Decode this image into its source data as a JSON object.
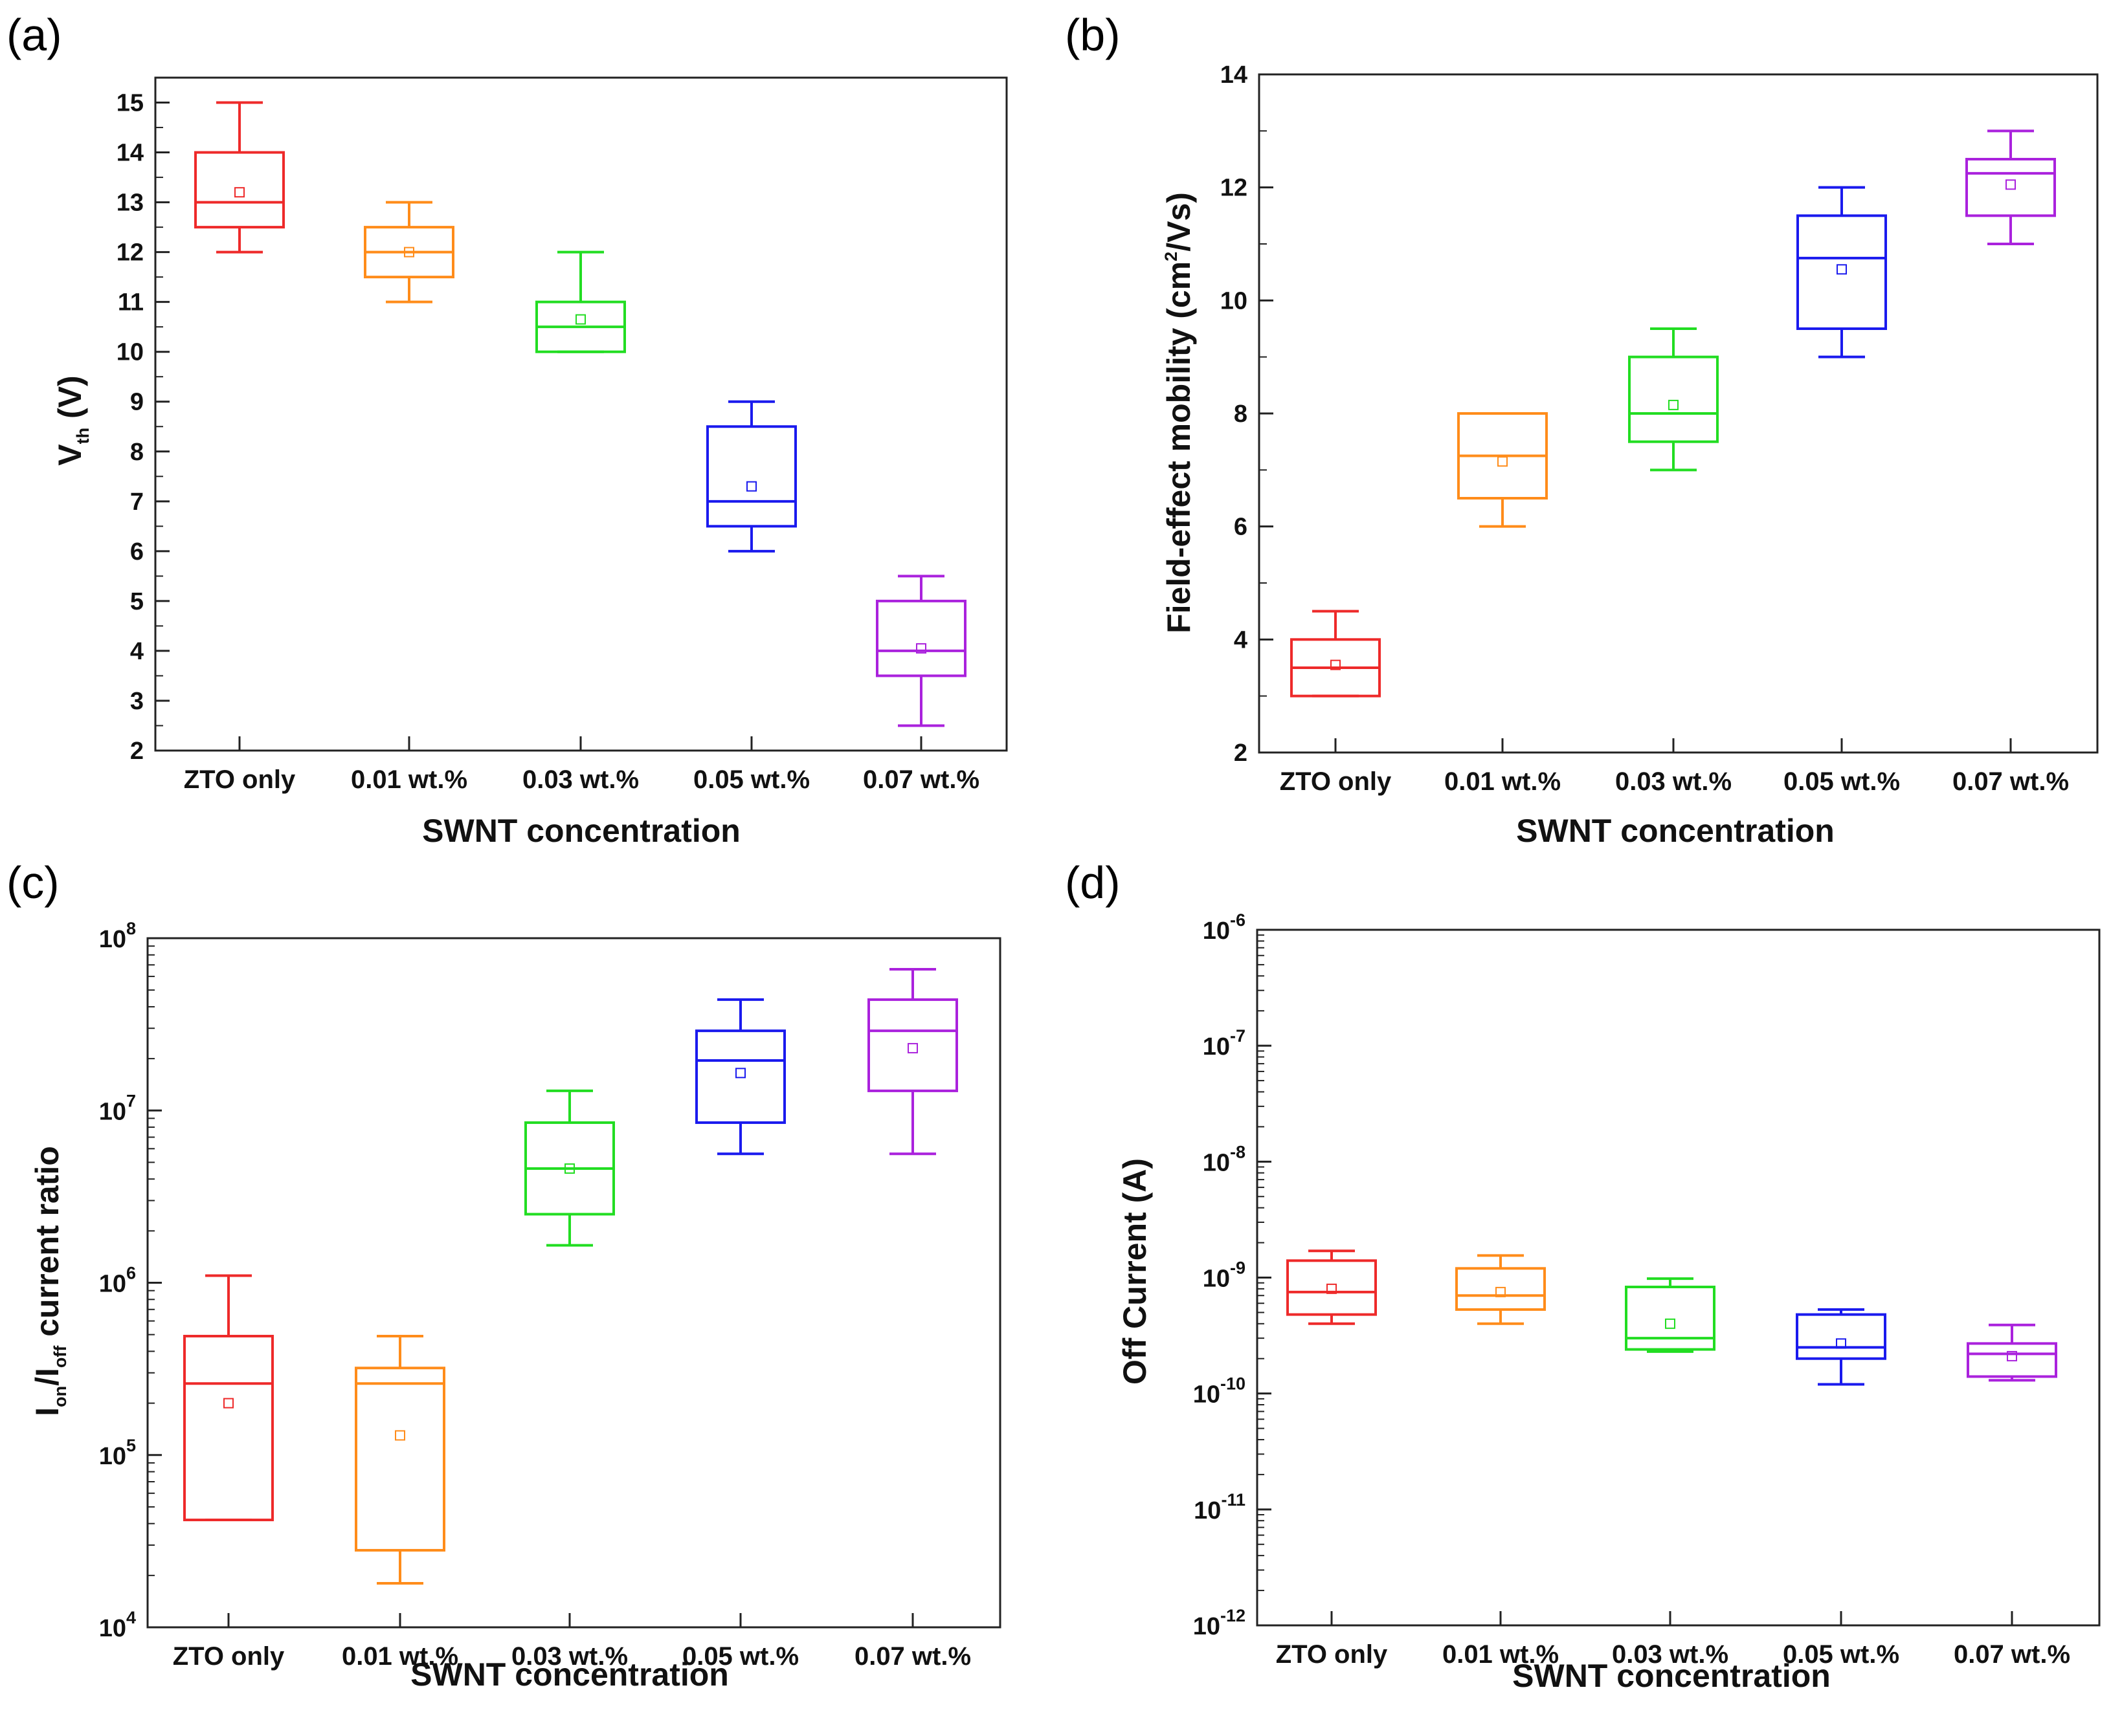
{
  "colors": {
    "ZTO only": "#ee2a2a",
    "0.01 wt.%": "#ff8c1a",
    "0.03 wt.%": "#22dd22",
    "0.05 wt.%": "#1a1aee",
    "0.07 wt.%": "#aa22dd"
  },
  "chart_data": [
    {
      "id": "a",
      "panel_label": "(a)",
      "type": "box",
      "xlabel": "SWNT concentration",
      "ylabel_main": "V",
      "ylabel_sub": "th",
      "ylabel_tail": " (V)",
      "yscale": "linear",
      "ylim": [
        2,
        15.5
      ],
      "yticks": [
        2,
        3,
        4,
        5,
        6,
        7,
        8,
        9,
        10,
        11,
        12,
        13,
        14,
        15
      ],
      "ytick_labels": [
        "2",
        "3",
        "4",
        "5",
        "6",
        "7",
        "8",
        "9",
        "10",
        "11",
        "12",
        "13",
        "14",
        "15"
      ],
      "categories": [
        "ZTO only",
        "0.01 wt.%",
        "0.03 wt.%",
        "0.05 wt.%",
        "0.07 wt.%"
      ],
      "boxes": [
        {
          "whisker_low": 12.0,
          "q1": 12.5,
          "median": 13.0,
          "q3": 14.0,
          "whisker_high": 15.0,
          "mean": 13.2
        },
        {
          "whisker_low": 11.0,
          "q1": 11.5,
          "median": 12.0,
          "q3": 12.5,
          "whisker_high": 13.0,
          "mean": 12.0
        },
        {
          "whisker_low": 10.0,
          "q1": 10.0,
          "median": 10.5,
          "q3": 11.0,
          "whisker_high": 12.0,
          "mean": 10.65
        },
        {
          "whisker_low": 6.0,
          "q1": 6.5,
          "median": 7.0,
          "q3": 8.5,
          "whisker_high": 9.0,
          "mean": 7.3
        },
        {
          "whisker_low": 2.5,
          "q1": 3.5,
          "median": 4.0,
          "q3": 5.0,
          "whisker_high": 5.5,
          "mean": 4.05
        }
      ]
    },
    {
      "id": "b",
      "panel_label": "(b)",
      "type": "box",
      "xlabel": "SWNT concentration",
      "ylabel_main": "Field-effect mobility (cm",
      "ylabel_sup": "2",
      "ylabel_tail": "/Vs)",
      "yscale": "linear",
      "ylim": [
        2,
        14
      ],
      "yticks": [
        2,
        4,
        6,
        8,
        10,
        12,
        14
      ],
      "ytick_labels": [
        "2",
        "4",
        "6",
        "8",
        "10",
        "12",
        "14"
      ],
      "categories": [
        "ZTO only",
        "0.01 wt.%",
        "0.03 wt.%",
        "0.05 wt.%",
        "0.07 wt.%"
      ],
      "boxes": [
        {
          "whisker_low": 3.0,
          "q1": 3.0,
          "median": 3.5,
          "q3": 4.0,
          "whisker_high": 4.5,
          "mean": 3.55
        },
        {
          "whisker_low": 6.0,
          "q1": 6.5,
          "median": 7.25,
          "q3": 8.0,
          "whisker_high": 8.0,
          "mean": 7.15
        },
        {
          "whisker_low": 7.0,
          "q1": 7.5,
          "median": 8.0,
          "q3": 9.0,
          "whisker_high": 9.5,
          "mean": 8.15
        },
        {
          "whisker_low": 9.0,
          "q1": 9.5,
          "median": 10.75,
          "q3": 11.5,
          "whisker_high": 12.0,
          "mean": 10.55
        },
        {
          "whisker_low": 11.0,
          "q1": 11.5,
          "median": 12.25,
          "q3": 12.5,
          "whisker_high": 13.0,
          "mean": 12.05
        }
      ]
    },
    {
      "id": "c",
      "panel_label": "(c)",
      "type": "box",
      "xlabel": "SWNT concentration",
      "ylabel_main": "I",
      "ylabel_sub": "on",
      "ylabel_mid": "/I",
      "ylabel_sub2": "off",
      "ylabel_tail": " current ratio",
      "yscale": "log",
      "ylim_exp": [
        4,
        8
      ],
      "ytick_base": "10",
      "ytick_exponents": [
        "4",
        "5",
        "6",
        "7",
        "8"
      ],
      "categories": [
        "ZTO only",
        "0.01 wt.%",
        "0.03 wt.%",
        "0.05 wt.%",
        "0.07 wt.%"
      ],
      "boxes": [
        {
          "whisker_low": 42000,
          "q1": 42000,
          "median": 260000,
          "q3": 490000,
          "whisker_high": 1100000,
          "mean": 200000
        },
        {
          "whisker_low": 18000,
          "q1": 28000,
          "median": 260000,
          "q3": 320000,
          "whisker_high": 490000,
          "mean": 130000
        },
        {
          "whisker_low": 1650000,
          "q1": 2500000,
          "median": 4600000,
          "q3": 8500000,
          "whisker_high": 13000000,
          "mean": 4600000
        },
        {
          "whisker_low": 5600000,
          "q1": 8500000,
          "median": 19500000,
          "q3": 29000000,
          "whisker_high": 44000000,
          "mean": 16500000
        },
        {
          "whisker_low": 5600000,
          "q1": 13000000,
          "median": 29000000,
          "q3": 44000000,
          "whisker_high": 66000000,
          "mean": 23000000
        }
      ]
    },
    {
      "id": "d",
      "panel_label": "(d)",
      "type": "box",
      "xlabel": "SWNT concentration",
      "ylabel_main": "Off Current (A)",
      "yscale": "log",
      "ylim_exp": [
        -12,
        -6
      ],
      "ytick_base": "10",
      "ytick_exponents": [
        "-12",
        "-11",
        "-10",
        "-9",
        "-8",
        "-7",
        "-6"
      ],
      "categories": [
        "ZTO only",
        "0.01 wt.%",
        "0.03 wt.%",
        "0.05 wt.%",
        "0.07 wt.%"
      ],
      "boxes": [
        {
          "whisker_low": 4e-10,
          "q1": 4.8e-10,
          "median": 7.5e-10,
          "q3": 1.4e-09,
          "whisker_high": 1.7e-09,
          "mean": 8e-10
        },
        {
          "whisker_low": 4e-10,
          "q1": 5.3e-10,
          "median": 7e-10,
          "q3": 1.2e-09,
          "whisker_high": 1.55e-09,
          "mean": 7.5e-10
        },
        {
          "whisker_low": 2.3e-10,
          "q1": 2.4e-10,
          "median": 3e-10,
          "q3": 8.3e-10,
          "whisker_high": 9.8e-10,
          "mean": 4e-10
        },
        {
          "whisker_low": 1.2e-10,
          "q1": 2e-10,
          "median": 2.5e-10,
          "q3": 4.8e-10,
          "whisker_high": 5.3e-10,
          "mean": 2.7e-10
        },
        {
          "whisker_low": 1.3e-10,
          "q1": 1.4e-10,
          "median": 2.2e-10,
          "q3": 2.7e-10,
          "whisker_high": 3.9e-10,
          "mean": 2.1e-10
        }
      ]
    }
  ]
}
